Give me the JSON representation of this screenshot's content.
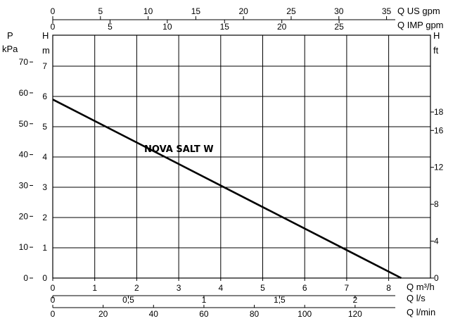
{
  "chart_data": {
    "type": "line",
    "series": [
      {
        "name": "NOVA SALT W",
        "x": [
          0,
          8.3
        ],
        "y": [
          5.9,
          0
        ]
      }
    ],
    "x_axis": {
      "label": "Q m³/h",
      "ticks": [
        0,
        1,
        2,
        3,
        4,
        5,
        6,
        7,
        8
      ],
      "range": [
        0,
        8.3
      ]
    },
    "y_axis": {
      "label": "H",
      "unit": "m",
      "ticks": [
        0,
        1,
        2,
        3,
        4,
        5,
        6,
        7
      ],
      "range": [
        0,
        7.5
      ]
    },
    "secondary_axes": {
      "top_us_gpm": {
        "label": "Q US gpm",
        "ticks": [
          "0",
          "5",
          "10",
          "15",
          "20",
          "25",
          "30",
          "35"
        ],
        "m3h_per_unit": 0.22712
      },
      "top_imp_gpm": {
        "label": "Q IMP gpm",
        "ticks": [
          "0",
          "5",
          "10",
          "15",
          "20",
          "25"
        ],
        "m3h_per_unit": 0.27276
      },
      "bottom_ls": {
        "label": "Q l/s",
        "ticks": [
          "0",
          "0,5",
          "1",
          "1,5",
          "2"
        ],
        "m3h_per_unit": 3.6
      },
      "bottom_lmin": {
        "label": "Q l/min",
        "ticks": [
          "0",
          "20",
          "40",
          "60",
          "80",
          "100",
          "120"
        ],
        "m3h_per_unit": 0.06
      },
      "left_kpa": {
        "label": "P",
        "unit": "kPa",
        "ticks": [
          "0",
          "10",
          "20",
          "30",
          "40",
          "50",
          "60",
          "70"
        ],
        "m_per_unit": 0.10197
      },
      "right_ft": {
        "label": "H",
        "unit": "ft",
        "ticks": [
          "0",
          "4",
          "8",
          "12",
          "16",
          "18"
        ],
        "m_per_unit": 0.3048
      }
    },
    "grid": true,
    "annotations": [
      "NOVA SALT W"
    ]
  }
}
